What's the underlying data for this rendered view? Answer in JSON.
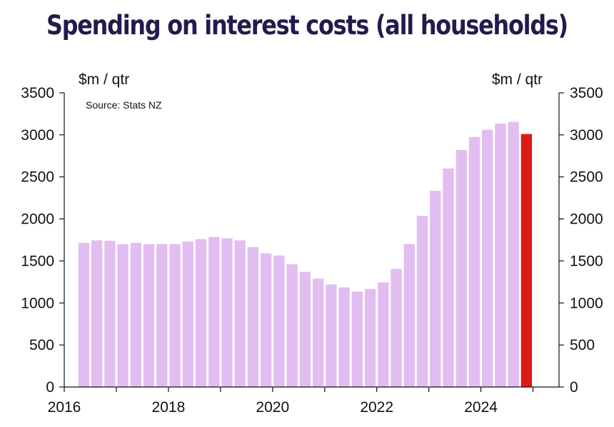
{
  "chart_data": {
    "type": "bar",
    "title": "Spending on interest costs (all households)",
    "ylabel_left": "$m / qtr",
    "ylabel_right": "$m / qtr",
    "source": "Source: Stats NZ",
    "ylim": [
      0,
      3500
    ],
    "yticks": [
      0,
      500,
      1000,
      1500,
      2000,
      2500,
      3000,
      3500
    ],
    "xlim": [
      2016,
      2025.5
    ],
    "xtick_labels": [
      "2016",
      "2018",
      "2020",
      "2022",
      "2024"
    ],
    "xticks": [
      2016,
      2017,
      2018,
      2019,
      2020,
      2021,
      2022,
      2023,
      2024,
      2025
    ],
    "colors": {
      "bar": "#e2bdf2",
      "highlight": "#dd1a14",
      "title": "#231b4e",
      "axis": "#111111"
    },
    "series": [
      {
        "x": [
          "2016Q2",
          "2016Q3",
          "2016Q4",
          "2017Q1",
          "2017Q2",
          "2017Q3",
          "2017Q4",
          "2018Q1",
          "2018Q2",
          "2018Q3",
          "2018Q4",
          "2019Q1",
          "2019Q2",
          "2019Q3",
          "2019Q4",
          "2020Q1",
          "2020Q2",
          "2020Q3",
          "2020Q4",
          "2021Q1",
          "2021Q2",
          "2021Q3",
          "2021Q4",
          "2022Q1",
          "2022Q2",
          "2022Q3",
          "2022Q4",
          "2023Q1",
          "2023Q2",
          "2023Q3",
          "2023Q4",
          "2024Q1",
          "2024Q2",
          "2024Q3",
          "2024Q4"
        ],
        "values": [
          1715,
          1745,
          1740,
          1700,
          1715,
          1700,
          1700,
          1700,
          1730,
          1760,
          1785,
          1770,
          1745,
          1665,
          1590,
          1565,
          1460,
          1370,
          1290,
          1220,
          1185,
          1135,
          1165,
          1245,
          1405,
          1700,
          2035,
          2335,
          2600,
          2820,
          2975,
          3060,
          3135,
          3155,
          3010
        ],
        "highlight_last": true
      }
    ]
  }
}
